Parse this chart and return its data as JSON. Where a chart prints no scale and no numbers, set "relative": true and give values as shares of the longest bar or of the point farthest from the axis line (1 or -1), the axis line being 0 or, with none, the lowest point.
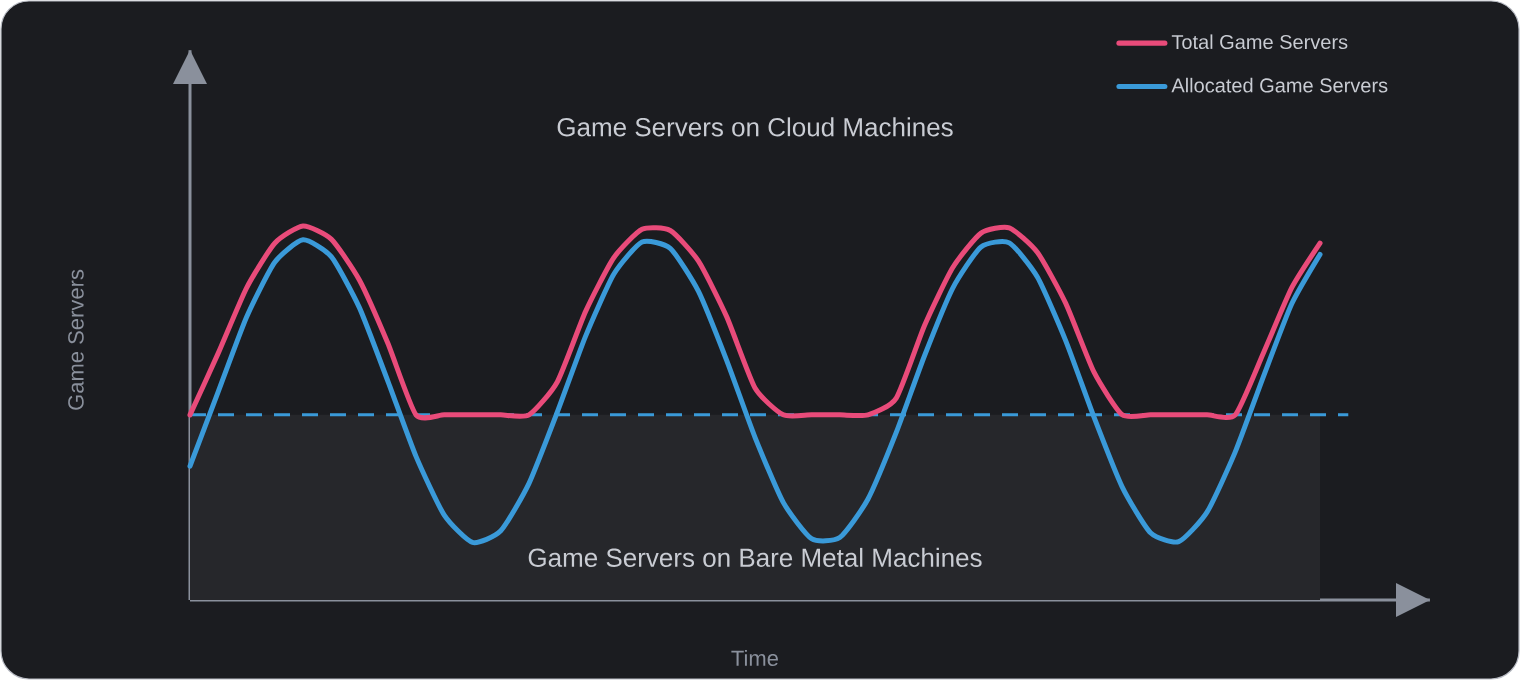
{
  "chart_data": {
    "type": "line",
    "relative": true,
    "xlabel": "Time",
    "ylabel": "Game Servers",
    "annotations": [
      "Game Servers on Cloud Machines"
    ],
    "categories": [
      null,
      null,
      null,
      null,
      null,
      null,
      null,
      null,
      null,
      null,
      null,
      null,
      null,
      null,
      null,
      null,
      null,
      null,
      null,
      null,
      null,
      null,
      null,
      null,
      null,
      null,
      null,
      null,
      null,
      null,
      null,
      null,
      null,
      null,
      null,
      null,
      null,
      null,
      null,
      null,
      null
    ],
    "series": [
      {
        "name": "Total Game Servers",
        "color": "#e94b7a",
        "values": [
          0.495,
          0.66,
          0.834,
          0.954,
          1.0,
          0.965,
          0.855,
          0.687,
          0.495,
          0.495,
          0.495,
          0.495,
          0.495,
          0.583,
          0.771,
          0.915,
          0.991,
          0.988,
          0.906,
          0.757,
          0.567,
          0.495,
          0.495,
          0.495,
          0.495,
          0.54,
          0.734,
          0.889,
          0.981,
          0.995,
          0.929,
          0.793,
          0.609,
          0.495,
          0.495,
          0.495,
          0.495,
          0.495,
          0.661,
          0.835,
          0.954
        ]
      },
      {
        "name": "Allocated Game Servers",
        "color": "#3a9ad9",
        "values": [
          0.358,
          0.557,
          0.756,
          0.903,
          0.963,
          0.918,
          0.781,
          0.586,
          0.384,
          0.227,
          0.154,
          0.185,
          0.312,
          0.502,
          0.705,
          0.871,
          0.957,
          0.94,
          0.825,
          0.64,
          0.435,
          0.261,
          0.164,
          0.167,
          0.27,
          0.448,
          0.653,
          0.834,
          0.944,
          0.955,
          0.863,
          0.693,
          0.489,
          0.302,
          0.18,
          0.156,
          0.235,
          0.396,
          0.598,
          0.792,
          0.924
        ]
      }
    ],
    "ref_lines": [
      {
        "axis": "y",
        "value": 0.495,
        "color": "#3a9ad9",
        "line_style": "dashed"
      }
    ],
    "bands": [
      {
        "axis": "y",
        "from": 0,
        "to": 0.495,
        "label": "Game Servers on Bare Metal Machines",
        "color": "#26272b"
      }
    ],
    "marker": "none",
    "legend": "top right"
  }
}
